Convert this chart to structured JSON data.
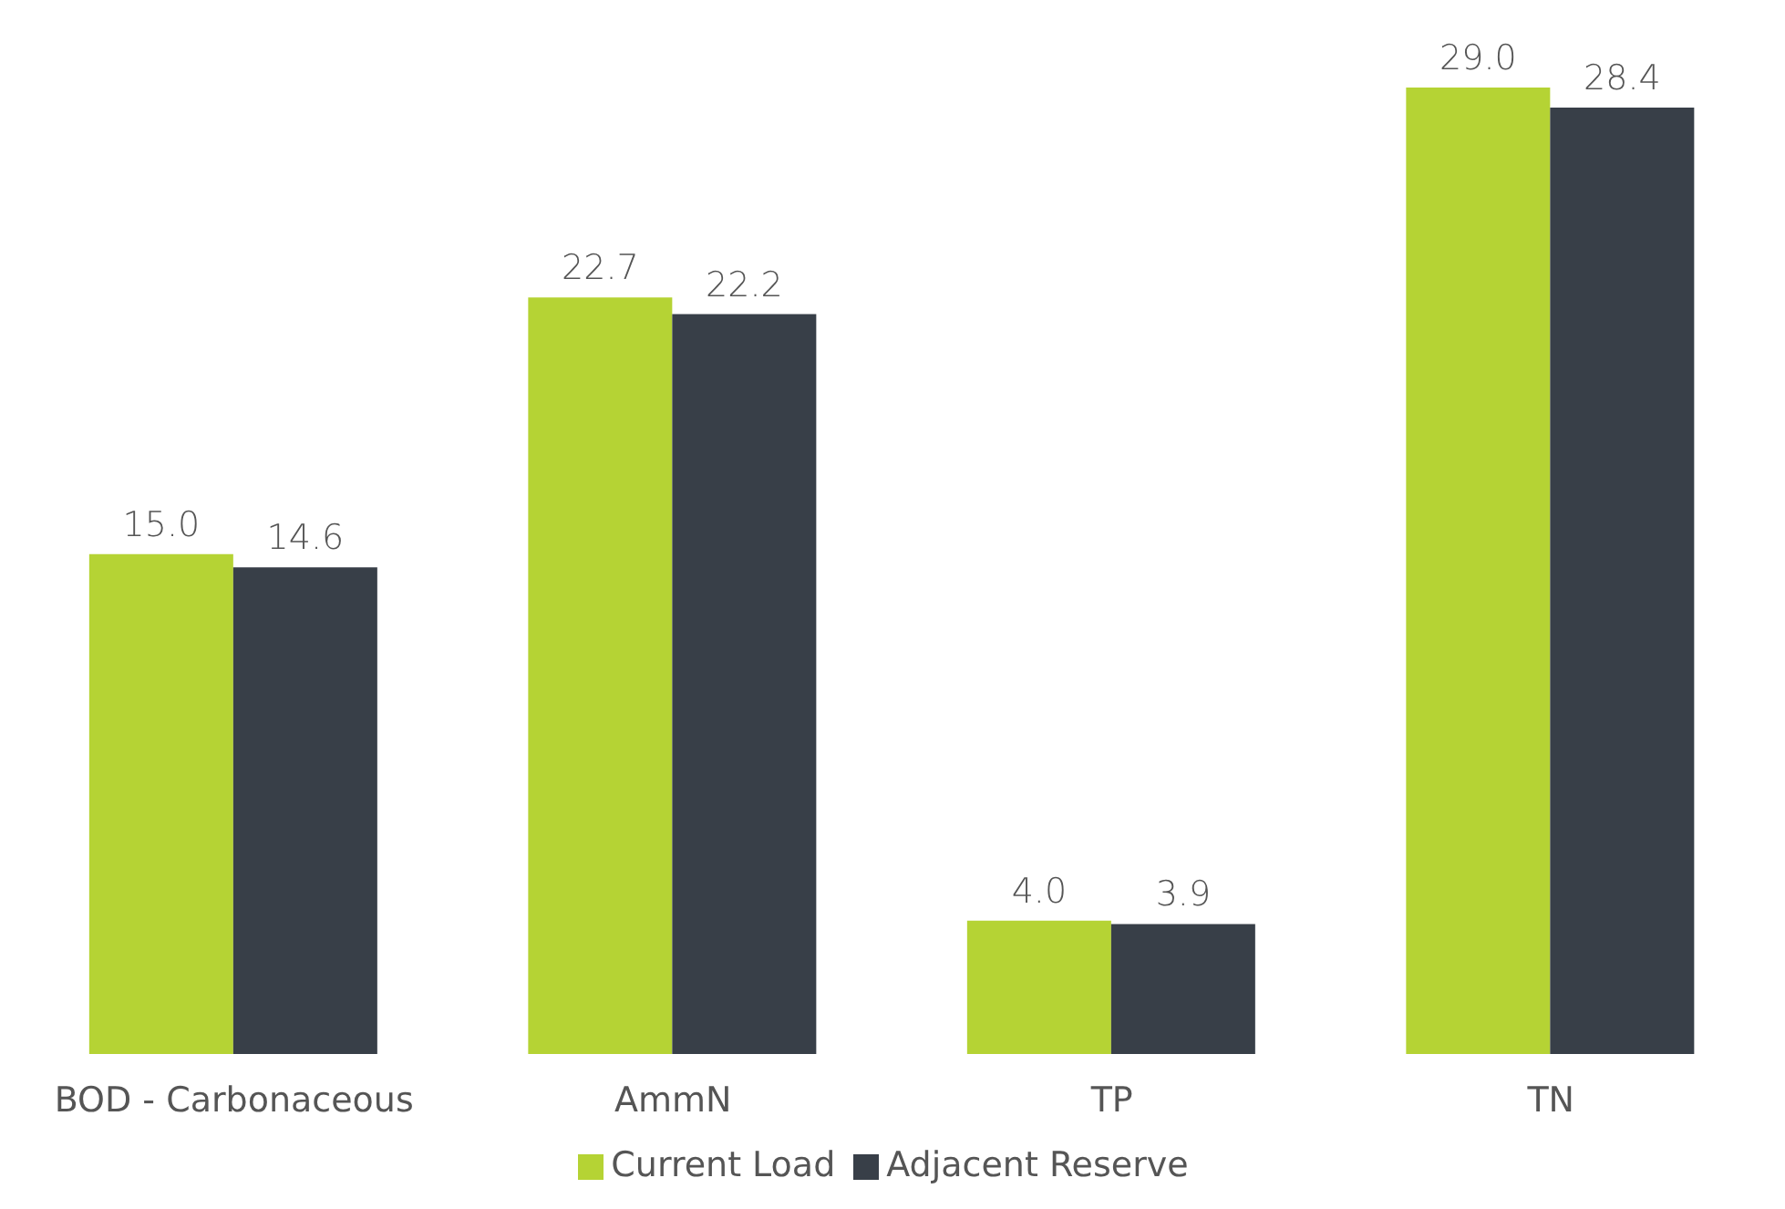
{
  "chart_data": {
    "type": "bar",
    "categories": [
      "BOD - Carbonaceous",
      "AmmN",
      "TP",
      "TN"
    ],
    "series": [
      {
        "name": "Current Load",
        "color": "#b5d334",
        "values": [
          15.0,
          22.7,
          4.0,
          29.0
        ],
        "value_labels": [
          "15.0",
          "22.7",
          "4.0",
          "29.0"
        ]
      },
      {
        "name": "Adjacent Reserve",
        "color": "#383f48",
        "values": [
          14.6,
          22.2,
          3.9,
          28.4
        ],
        "value_labels": [
          "14.6",
          "22.2",
          "3.9",
          "28.4"
        ]
      }
    ],
    "legend": "bottom",
    "grid": false
  }
}
